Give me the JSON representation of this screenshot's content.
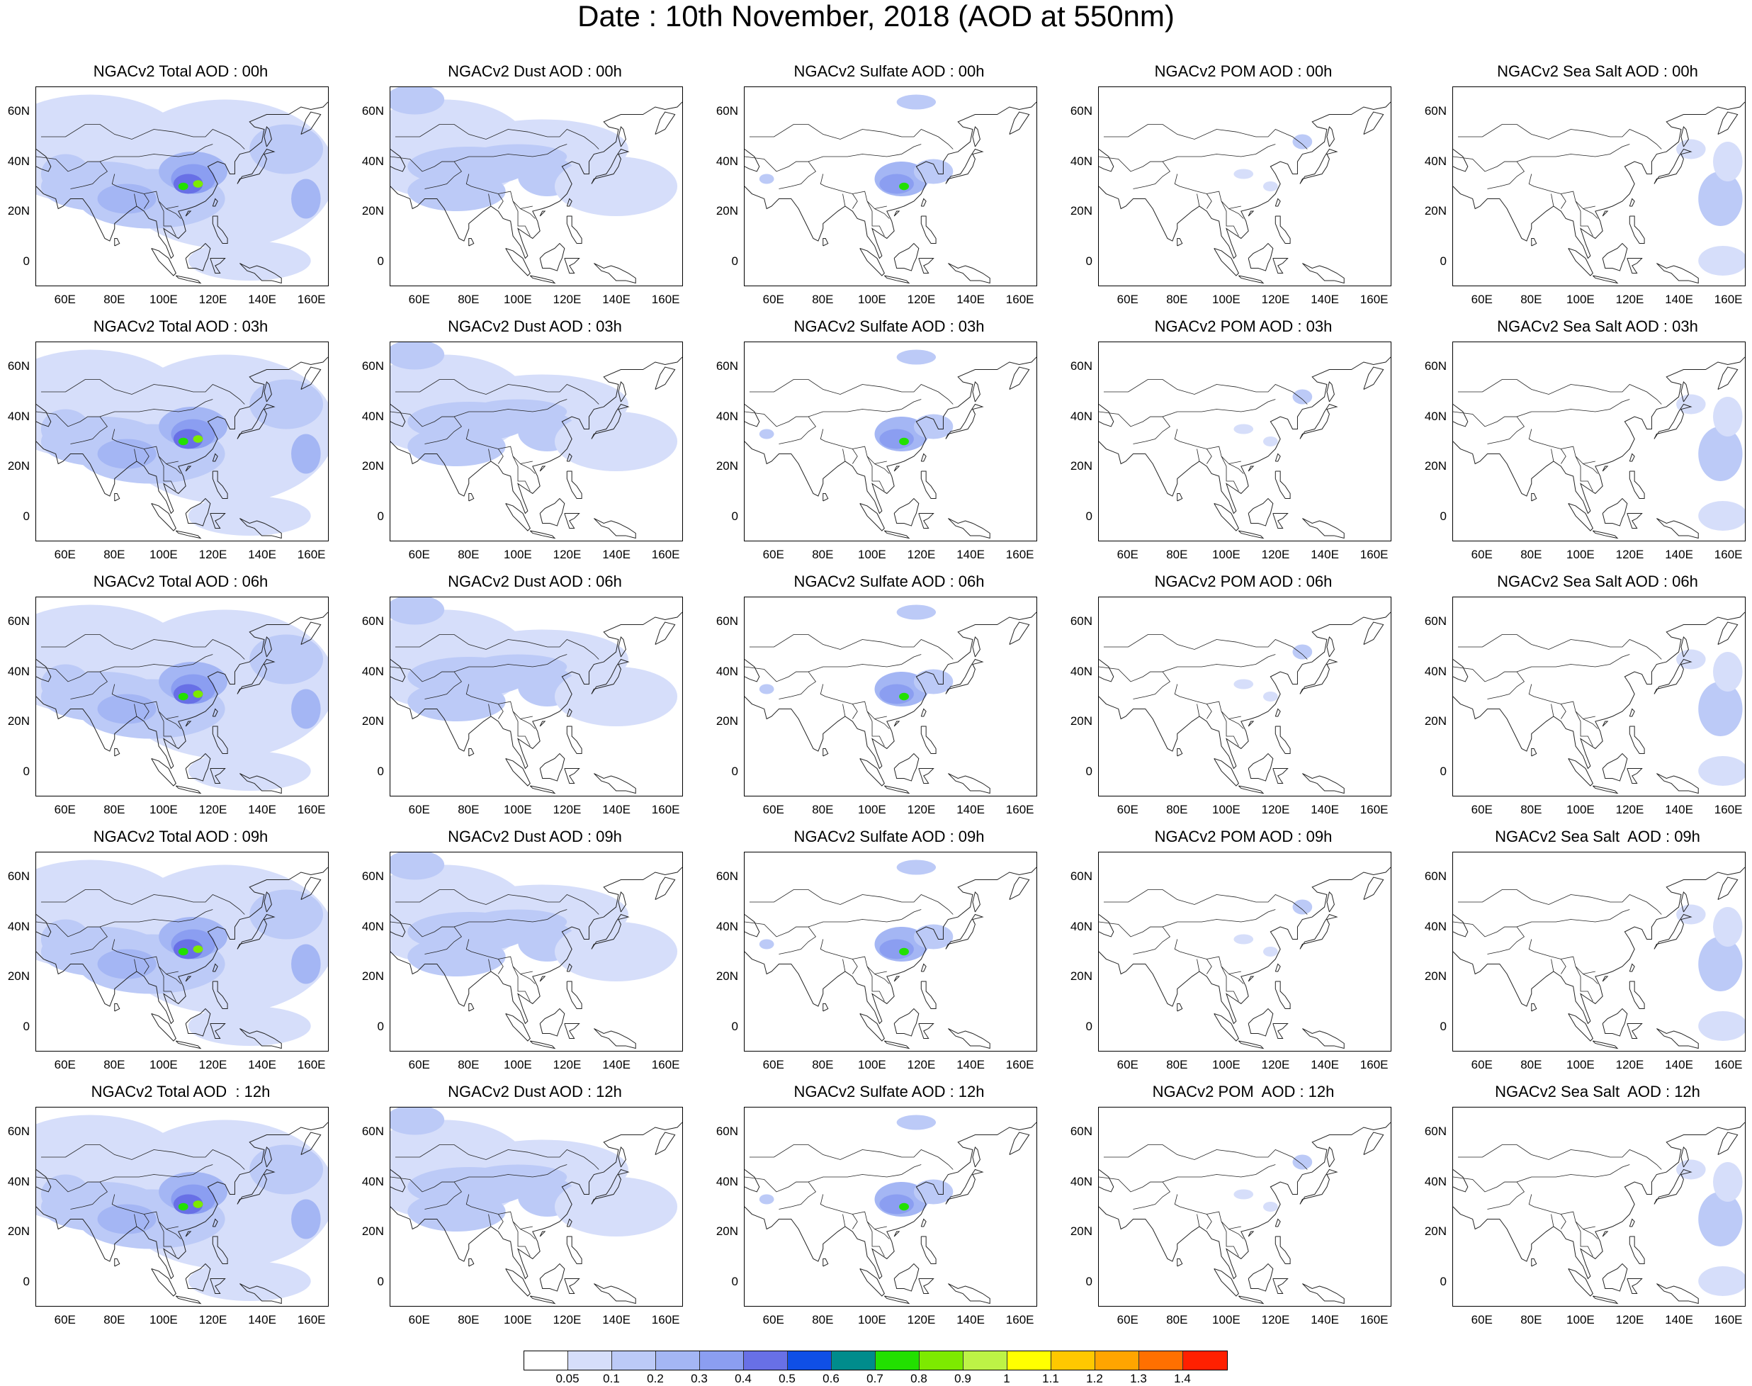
{
  "title": "Date : 10th November, 2018 (AOD at 550nm)",
  "colors": {
    "coast": "#222222",
    "scale": [
      "#ffffff",
      "#d6defa",
      "#bccaf7",
      "#a4b6f4",
      "#8b9ef1",
      "#6870e6",
      "#0f4fe6",
      "#008c8c",
      "#22e000",
      "#7dea00",
      "#bdf346",
      "#ffff00",
      "#ffc800",
      "#ffa500",
      "#ff7000",
      "#ff2000"
    ]
  },
  "colorbar": {
    "labels": [
      "0.05",
      "0.1",
      "0.2",
      "0.3",
      "0.4",
      "0.5",
      "0.6",
      "0.7",
      "0.8",
      "0.9",
      "1",
      "1.1",
      "1.2",
      "1.3",
      "1.4"
    ]
  },
  "axes": {
    "y_labels": [
      "60N",
      "40N",
      "20N",
      "0"
    ],
    "x_labels": [
      "60E",
      "80E",
      "100E",
      "120E",
      "140E",
      "160E"
    ],
    "lon_range": [
      48,
      167
    ],
    "lat_range": [
      -10,
      70
    ]
  },
  "panels": [
    [
      {
        "title": "NGACv2 Total AOD : 00h",
        "type": "total"
      },
      {
        "title": "NGACv2 Dust AOD : 00h",
        "type": "dust"
      },
      {
        "title": "NGACv2 Sulfate AOD : 00h",
        "type": "sulfate"
      },
      {
        "title": "NGACv2 POM AOD : 00h",
        "type": "pom"
      },
      {
        "title": "NGACv2 Sea Salt AOD : 00h",
        "type": "seasalt"
      }
    ],
    [
      {
        "title": "NGACv2 Total AOD : 03h",
        "type": "total"
      },
      {
        "title": "NGACv2 Dust AOD : 03h",
        "type": "dust"
      },
      {
        "title": "NGACv2 Sulfate AOD : 03h",
        "type": "sulfate"
      },
      {
        "title": "NGACv2 POM AOD : 03h",
        "type": "pom"
      },
      {
        "title": "NGACv2 Sea Salt AOD : 03h",
        "type": "seasalt"
      }
    ],
    [
      {
        "title": "NGACv2 Total AOD : 06h",
        "type": "total"
      },
      {
        "title": "NGACv2 Dust AOD : 06h",
        "type": "dust"
      },
      {
        "title": "NGACv2 Sulfate AOD : 06h",
        "type": "sulfate"
      },
      {
        "title": "NGACv2 POM AOD : 06h",
        "type": "pom"
      },
      {
        "title": "NGACv2 Sea Salt AOD : 06h",
        "type": "seasalt"
      }
    ],
    [
      {
        "title": "NGACv2 Total AOD : 09h",
        "type": "total"
      },
      {
        "title": "NGACv2 Dust AOD : 09h",
        "type": "dust"
      },
      {
        "title": "NGACv2 Sulfate AOD : 09h",
        "type": "sulfate"
      },
      {
        "title": "NGACv2 POM AOD : 09h",
        "type": "pom"
      },
      {
        "title": "NGACv2 Sea Salt  AOD : 09h",
        "type": "seasalt"
      }
    ],
    [
      {
        "title": "NGACv2 Total AOD  : 12h",
        "type": "total"
      },
      {
        "title": "NGACv2 Dust AOD : 12h",
        "type": "dust"
      },
      {
        "title": "NGACv2 Sulfate AOD : 12h",
        "type": "sulfate"
      },
      {
        "title": "NGACv2 POM  AOD : 12h",
        "type": "pom"
      },
      {
        "title": "NGACv2 Sea Salt  AOD : 12h",
        "type": "seasalt"
      }
    ]
  ]
}
